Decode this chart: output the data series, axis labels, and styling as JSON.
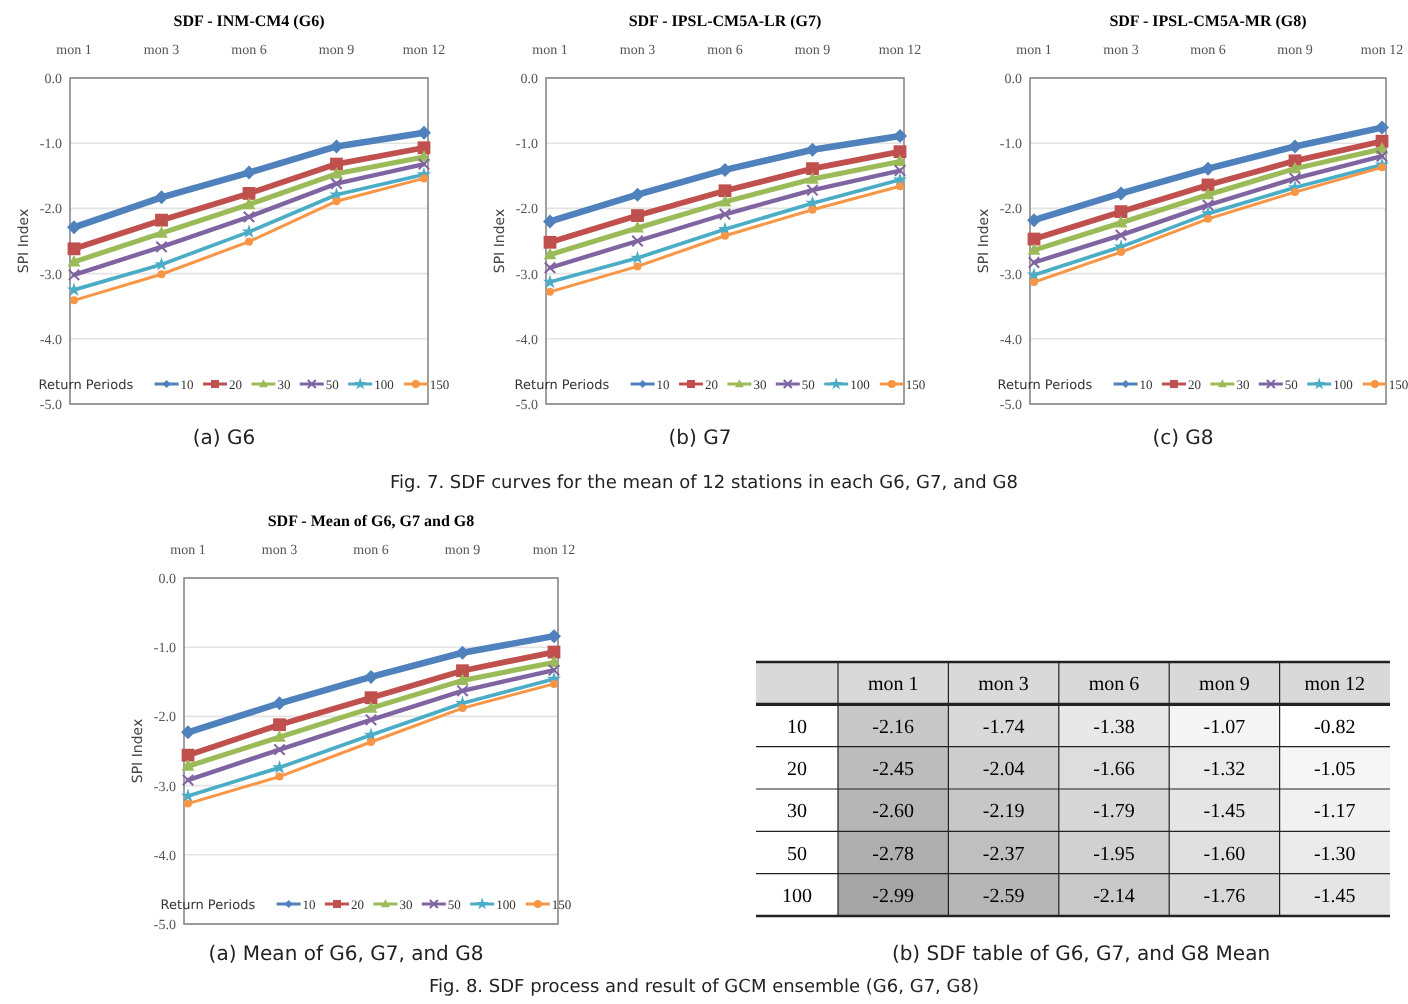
{
  "chart_data": [
    {
      "type": "line",
      "title": "SDF -  INM-CM4 (G6)",
      "ylabel": "SPI Index",
      "legend_title": "Return  Periods",
      "categories": [
        "mon 1",
        "mon 3",
        "mon 6",
        "mon 9",
        "mon 12"
      ],
      "ylim": [
        -5,
        0
      ],
      "yticks": [
        {
          "value": -5,
          "label": "-5.0"
        },
        {
          "value": -4,
          "label": "-4.0"
        },
        {
          "value": -3,
          "label": "-3.0"
        },
        {
          "value": -2,
          "label": "-2.0"
        },
        {
          "value": -1,
          "label": "-1.0"
        },
        {
          "value": 0,
          "label": "0.0"
        }
      ],
      "grid": "y",
      "legend": "bottom",
      "annotations": [
        "(a) G6",
        "Fig. 7. SDF curves for the mean of 12 stations in each G6, G7, and G8"
      ],
      "series": [
        {
          "name": "10",
          "color": "#4f81bd",
          "marker": "diamond",
          "values": [
            -2.29,
            -1.83,
            -1.45,
            -1.05,
            -0.84
          ]
        },
        {
          "name": "20",
          "color": "#c0504d",
          "marker": "square",
          "values": [
            -2.62,
            -2.18,
            -1.77,
            -1.32,
            -1.07
          ]
        },
        {
          "name": "30",
          "color": "#9bbb59",
          "marker": "triangle",
          "values": [
            -2.82,
            -2.38,
            -1.94,
            -1.47,
            -1.21
          ]
        },
        {
          "name": "50",
          "color": "#8064a2",
          "marker": "cross",
          "values": [
            -3.02,
            -2.59,
            -2.13,
            -1.62,
            -1.32
          ]
        },
        {
          "name": "100",
          "color": "#4bacc6",
          "marker": "star",
          "values": [
            -3.25,
            -2.86,
            -2.36,
            -1.79,
            -1.48
          ]
        },
        {
          "name": "150",
          "color": "#f79646",
          "marker": "circle",
          "values": [
            -3.41,
            -3.01,
            -2.51,
            -1.89,
            -1.54
          ]
        }
      ]
    },
    {
      "type": "line",
      "title": "SDF - IPSL-CM5A-LR (G7)",
      "ylabel": "SPI Index",
      "legend_title": "Return  Periods",
      "categories": [
        "mon 1",
        "mon 3",
        "mon 6",
        "mon 9",
        "mon 12"
      ],
      "ylim": [
        -5,
        0
      ],
      "yticks": [
        {
          "value": -5,
          "label": "-5.0"
        },
        {
          "value": -4,
          "label": "-4.0"
        },
        {
          "value": -3,
          "label": "-3.0"
        },
        {
          "value": -2,
          "label": "-2.0"
        },
        {
          "value": -1,
          "label": "-1.0"
        },
        {
          "value": 0,
          "label": "0.0"
        }
      ],
      "grid": "y",
      "legend": "bottom",
      "annotations": [
        "(b) G7"
      ],
      "series": [
        {
          "name": "10",
          "color": "#4f81bd",
          "marker": "diamond",
          "values": [
            -2.2,
            -1.79,
            -1.41,
            -1.1,
            -0.89
          ]
        },
        {
          "name": "20",
          "color": "#c0504d",
          "marker": "square",
          "values": [
            -2.52,
            -2.11,
            -1.73,
            -1.39,
            -1.13
          ]
        },
        {
          "name": "30",
          "color": "#9bbb59",
          "marker": "triangle",
          "values": [
            -2.71,
            -2.3,
            -1.9,
            -1.55,
            -1.28
          ]
        },
        {
          "name": "50",
          "color": "#8064a2",
          "marker": "cross",
          "values": [
            -2.91,
            -2.5,
            -2.09,
            -1.72,
            -1.42
          ]
        },
        {
          "name": "100",
          "color": "#4bacc6",
          "marker": "star",
          "values": [
            -3.13,
            -2.76,
            -2.32,
            -1.92,
            -1.56
          ]
        },
        {
          "name": "150",
          "color": "#f79646",
          "marker": "circle",
          "values": [
            -3.28,
            -2.89,
            -2.42,
            -2.02,
            -1.66
          ]
        }
      ]
    },
    {
      "type": "line",
      "title": "SDF - IPSL-CM5A-MR (G8)",
      "ylabel": "SPI Index",
      "legend_title": "Return  Periods",
      "categories": [
        "mon 1",
        "mon 3",
        "mon 6",
        "mon 9",
        "mon 12"
      ],
      "ylim": [
        -5,
        0
      ],
      "yticks": [
        {
          "value": -5,
          "label": "-5.0"
        },
        {
          "value": -4,
          "label": "-4.0"
        },
        {
          "value": -3,
          "label": "-3.0"
        },
        {
          "value": -2,
          "label": "-2.0"
        },
        {
          "value": -1,
          "label": "-1.0"
        },
        {
          "value": 0,
          "label": "0.0"
        }
      ],
      "grid": "y",
      "legend": "bottom",
      "annotations": [
        "(c) G8"
      ],
      "series": [
        {
          "name": "10",
          "color": "#4f81bd",
          "marker": "diamond",
          "values": [
            -2.18,
            -1.77,
            -1.39,
            -1.05,
            -0.76
          ]
        },
        {
          "name": "20",
          "color": "#c0504d",
          "marker": "square",
          "values": [
            -2.47,
            -2.05,
            -1.64,
            -1.27,
            -0.97
          ]
        },
        {
          "name": "30",
          "color": "#9bbb59",
          "marker": "triangle",
          "values": [
            -2.64,
            -2.22,
            -1.79,
            -1.39,
            -1.09
          ]
        },
        {
          "name": "50",
          "color": "#8064a2",
          "marker": "cross",
          "values": [
            -2.83,
            -2.41,
            -1.95,
            -1.54,
            -1.2
          ]
        },
        {
          "name": "100",
          "color": "#4bacc6",
          "marker": "star",
          "values": [
            -3.02,
            -2.59,
            -2.08,
            -1.68,
            -1.33
          ]
        },
        {
          "name": "150",
          "color": "#f79646",
          "marker": "circle",
          "values": [
            -3.13,
            -2.67,
            -2.16,
            -1.75,
            -1.37
          ]
        }
      ]
    },
    {
      "type": "line",
      "title": "SDF - Mean of G6, G7 and G8",
      "ylabel": "SPI Index",
      "legend_title": "Return  Periods",
      "categories": [
        "mon 1",
        "mon 3",
        "mon 6",
        "mon 9",
        "mon 12"
      ],
      "ylim": [
        -5,
        0
      ],
      "yticks": [
        {
          "value": -5,
          "label": "-5.0"
        },
        {
          "value": -4,
          "label": "-4.0"
        },
        {
          "value": -3,
          "label": "-3.0"
        },
        {
          "value": -2,
          "label": "-2.0"
        },
        {
          "value": -1,
          "label": "-1.0"
        },
        {
          "value": 0,
          "label": "0.0"
        }
      ],
      "grid": "y",
      "legend": "bottom",
      "annotations": [
        "(a) Mean of G6, G7, and G8",
        "Fig. 8. SDF process and result of GCM ensemble (G6, G7, G8)"
      ],
      "series": [
        {
          "name": "10",
          "color": "#4f81bd",
          "marker": "diamond",
          "values": [
            -2.23,
            -1.81,
            -1.43,
            -1.08,
            -0.84
          ]
        },
        {
          "name": "20",
          "color": "#c0504d",
          "marker": "square",
          "values": [
            -2.56,
            -2.12,
            -1.73,
            -1.34,
            -1.07
          ]
        },
        {
          "name": "30",
          "color": "#9bbb59",
          "marker": "triangle",
          "values": [
            -2.72,
            -2.3,
            -1.88,
            -1.48,
            -1.22
          ]
        },
        {
          "name": "50",
          "color": "#8064a2",
          "marker": "cross",
          "values": [
            -2.92,
            -2.48,
            -2.05,
            -1.63,
            -1.33
          ]
        },
        {
          "name": "100",
          "color": "#4bacc6",
          "marker": "star",
          "values": [
            -3.15,
            -2.74,
            -2.27,
            -1.81,
            -1.46
          ]
        },
        {
          "name": "150",
          "color": "#f79646",
          "marker": "circle",
          "values": [
            -3.26,
            -2.87,
            -2.37,
            -1.88,
            -1.53
          ]
        }
      ]
    },
    {
      "type": "heatmap",
      "categories": [
        "mon 1",
        "mon 3",
        "mon 6",
        "mon 9",
        "mon 12"
      ],
      "y_categories": [
        "10",
        "20",
        "30",
        "50",
        "100"
      ],
      "annotations": [
        "(b) SDF table of G6, G7, and G8 Mean"
      ],
      "cells": [
        [
          -2.16,
          -1.74,
          -1.38,
          -1.07,
          -0.82
        ],
        [
          -2.45,
          -2.04,
          -1.66,
          -1.32,
          -1.05
        ],
        [
          -2.6,
          -2.19,
          -1.79,
          -1.45,
          -1.17
        ],
        [
          -2.78,
          -2.37,
          -1.95,
          -1.6,
          -1.3
        ],
        [
          -2.99,
          -2.59,
          -2.14,
          -1.76,
          -1.45
        ]
      ],
      "cell_labels": [
        [
          "-2.16",
          "-1.74",
          "-1.38",
          "-1.07",
          "-0.82"
        ],
        [
          "-2.45",
          "-2.04",
          "-1.66",
          "-1.32",
          "-1.05"
        ],
        [
          "-2.60",
          "-2.19",
          "-1.79",
          "-1.45",
          "-1.17"
        ],
        [
          "-2.78",
          "-2.37",
          "-1.95",
          "-1.60",
          "-1.30"
        ],
        [
          "-2.99",
          "-2.59",
          "-2.14",
          "-1.76",
          "-1.45"
        ]
      ]
    }
  ]
}
